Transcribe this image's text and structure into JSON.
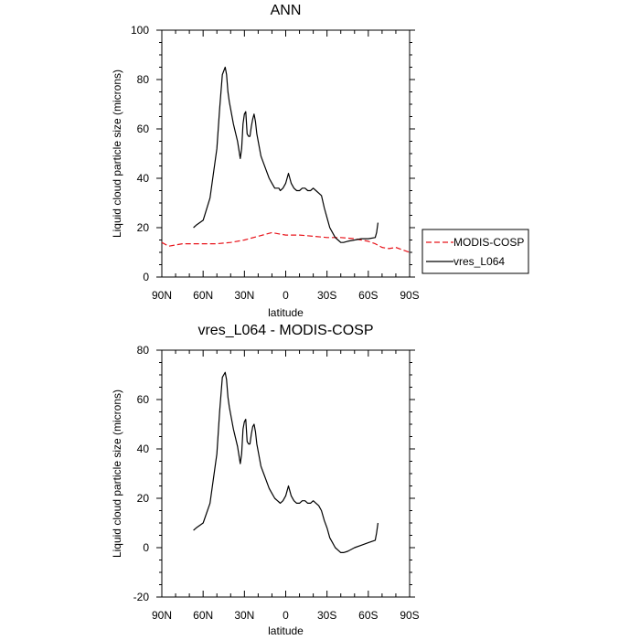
{
  "chart_data": [
    {
      "type": "line",
      "title": "ANN",
      "xlabel": "latitude",
      "ylabel": "Liquid cloud particle size (microns)",
      "xlim": [
        90,
        -90
      ],
      "ylim": [
        0,
        100
      ],
      "xticks": [
        90,
        60,
        30,
        0,
        -30,
        -60,
        -90
      ],
      "xtick_labels": [
        "90N",
        "60N",
        "30N",
        "0",
        "30S",
        "60S",
        "90S"
      ],
      "yticks": [
        0,
        20,
        40,
        60,
        80,
        100
      ],
      "ytick_labels": [
        "0",
        "20",
        "40",
        "60",
        "80",
        "100"
      ],
      "legend": {
        "placement": "right",
        "entries": [
          "MODIS-COSP",
          "vres_L064"
        ]
      },
      "series": [
        {
          "name": "MODIS-COSP",
          "color": "#e8141b",
          "dash": "dashed",
          "x": [
            90,
            85,
            80,
            75,
            70,
            60,
            50,
            40,
            30,
            20,
            10,
            5,
            0,
            -10,
            -20,
            -30,
            -40,
            -50,
            -55,
            -60,
            -65,
            -70,
            -75,
            -80,
            -85,
            -90
          ],
          "y": [
            14,
            12.5,
            13,
            13.5,
            13.5,
            13.5,
            13.5,
            14,
            15,
            16.5,
            18,
            17.5,
            17,
            17,
            16.5,
            16,
            16,
            15.5,
            15,
            14.5,
            13.5,
            12,
            11.5,
            12,
            11,
            10
          ]
        },
        {
          "name": "vres_L064",
          "color": "#000000",
          "dash": "solid",
          "x": [
            67,
            65,
            60,
            55,
            50,
            48,
            46,
            44,
            43,
            42,
            41,
            40,
            38,
            35,
            33,
            32,
            31,
            30,
            29,
            28,
            27,
            26,
            25,
            24,
            23,
            22,
            21,
            20,
            18,
            16,
            14,
            12,
            10,
            8,
            6,
            5,
            4,
            2,
            0,
            -2,
            -4,
            -6,
            -8,
            -10,
            -12,
            -14,
            -16,
            -18,
            -20,
            -22,
            -24,
            -26,
            -28,
            -30,
            -32,
            -34,
            -36,
            -38,
            -40,
            -42,
            -45,
            -50,
            -55,
            -60,
            -65,
            -66,
            -67
          ],
          "y": [
            20,
            21,
            23,
            32,
            52,
            68,
            82,
            85,
            82,
            75,
            71,
            68,
            62,
            55,
            48,
            52,
            62,
            66,
            67,
            58,
            57,
            57,
            61,
            64,
            66,
            63,
            58,
            55,
            49,
            46,
            43,
            40,
            38,
            36,
            36,
            36,
            35,
            36,
            38,
            42,
            38,
            36,
            35,
            35,
            36,
            36,
            35,
            35,
            36,
            35,
            34,
            33,
            28,
            24,
            20,
            18,
            16,
            15,
            14,
            14,
            14.5,
            15,
            15.5,
            15.5,
            16,
            18,
            22
          ]
        }
      ]
    },
    {
      "type": "line",
      "title": "vres_L064 - MODIS-COSP",
      "xlabel": "latitude",
      "ylabel": "Liquid cloud particle size (microns)",
      "xlim": [
        90,
        -90
      ],
      "ylim": [
        -20,
        80
      ],
      "xticks": [
        90,
        60,
        30,
        0,
        -30,
        -60,
        -90
      ],
      "xtick_labels": [
        "90N",
        "60N",
        "30N",
        "0",
        "30S",
        "60S",
        "90S"
      ],
      "yticks": [
        -20,
        0,
        20,
        40,
        60,
        80
      ],
      "ytick_labels": [
        "-20",
        "0",
        "20",
        "40",
        "60",
        "80"
      ],
      "series": [
        {
          "name": "vres_L064 - MODIS-COSP",
          "color": "#000000",
          "dash": "solid",
          "x": [
            67,
            65,
            60,
            55,
            50,
            48,
            46,
            44,
            43,
            42,
            41,
            40,
            38,
            35,
            33,
            32,
            31,
            30,
            29,
            28,
            27,
            26,
            25,
            24,
            23,
            22,
            21,
            20,
            18,
            16,
            14,
            12,
            10,
            8,
            6,
            5,
            4,
            2,
            0,
            -2,
            -4,
            -6,
            -8,
            -10,
            -12,
            -14,
            -16,
            -18,
            -20,
            -22,
            -24,
            -26,
            -28,
            -30,
            -32,
            -34,
            -36,
            -38,
            -40,
            -42,
            -45,
            -50,
            -55,
            -60,
            -65,
            -66,
            -67
          ],
          "y": [
            7,
            8,
            10,
            18,
            38,
            55,
            69,
            71,
            68,
            61,
            57,
            54,
            48,
            41,
            34,
            38,
            48,
            51,
            52,
            43,
            42,
            42,
            46,
            49,
            50,
            47,
            42,
            39,
            33,
            30,
            27,
            24,
            22,
            20,
            19,
            18.5,
            18,
            19,
            21,
            25,
            21,
            19,
            18,
            18,
            19,
            19,
            18,
            18,
            19,
            18,
            17,
            15,
            11,
            8,
            4,
            2,
            0,
            -1,
            -2,
            -2,
            -1.5,
            0,
            1,
            2,
            3,
            6,
            10
          ]
        }
      ]
    }
  ]
}
